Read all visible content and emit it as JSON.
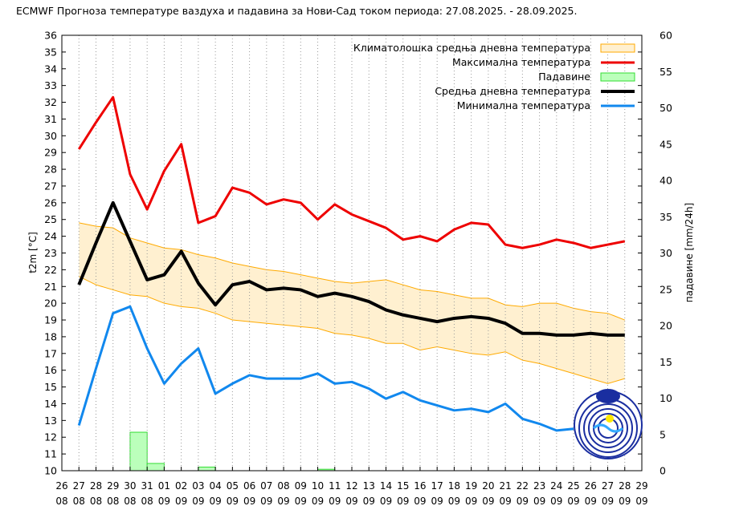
{
  "chart_data": {
    "type": "line",
    "title": "ECMWF Прогноза температуре ваздуха и падавина за Нови-Сад током периода: 27.08.2025. - 28.09.2025.",
    "ylabel": "t2m [°C]",
    "y2label": "падавине [mm/24h]",
    "ylim": [
      10,
      36
    ],
    "y2lim": [
      0,
      60
    ],
    "grid": "vertical-dotted",
    "legend_position": "top-right",
    "x_ticks": [
      [
        "26",
        "08"
      ],
      [
        "27",
        "08"
      ],
      [
        "28",
        "08"
      ],
      [
        "29",
        "08"
      ],
      [
        "30",
        "08"
      ],
      [
        "31",
        "08"
      ],
      [
        "01",
        "09"
      ],
      [
        "02",
        "09"
      ],
      [
        "03",
        "09"
      ],
      [
        "04",
        "09"
      ],
      [
        "05",
        "09"
      ],
      [
        "06",
        "09"
      ],
      [
        "07",
        "09"
      ],
      [
        "08",
        "09"
      ],
      [
        "09",
        "09"
      ],
      [
        "10",
        "09"
      ],
      [
        "11",
        "09"
      ],
      [
        "12",
        "09"
      ],
      [
        "13",
        "09"
      ],
      [
        "14",
        "09"
      ],
      [
        "15",
        "09"
      ],
      [
        "16",
        "09"
      ],
      [
        "17",
        "09"
      ],
      [
        "18",
        "09"
      ],
      [
        "19",
        "09"
      ],
      [
        "20",
        "09"
      ],
      [
        "21",
        "09"
      ],
      [
        "22",
        "09"
      ],
      [
        "23",
        "09"
      ],
      [
        "24",
        "09"
      ],
      [
        "25",
        "09"
      ],
      [
        "26",
        "09"
      ],
      [
        "27",
        "09"
      ],
      [
        "28",
        "09"
      ],
      [
        "29",
        "09"
      ]
    ],
    "x_day_index": [
      1,
      2,
      3,
      4,
      5,
      6,
      7,
      8,
      9,
      10,
      11,
      12,
      13,
      14,
      15,
      16,
      17,
      18,
      19,
      20,
      21,
      22,
      23,
      24,
      25,
      26,
      27,
      28,
      29,
      30,
      31,
      32,
      33
    ],
    "y_ticks": [
      10,
      11,
      12,
      13,
      14,
      15,
      16,
      17,
      18,
      19,
      20,
      21,
      22,
      23,
      24,
      25,
      26,
      27,
      28,
      29,
      30,
      31,
      32,
      33,
      34,
      35,
      36
    ],
    "y2_ticks": [
      0,
      5,
      10,
      15,
      20,
      25,
      30,
      35,
      40,
      45,
      50,
      55,
      60
    ],
    "series": [
      {
        "name": "Максимална температура",
        "color": "#ee0000",
        "values": [
          29.2,
          30.8,
          32.3,
          27.7,
          25.6,
          27.9,
          29.5,
          24.8,
          25.2,
          26.9,
          26.6,
          25.9,
          26.2,
          26.0,
          25.0,
          25.9,
          25.3,
          24.9,
          24.5,
          23.8,
          24.0,
          23.7,
          24.4,
          24.8,
          24.7,
          23.5,
          23.3,
          23.5,
          23.8,
          23.6,
          23.3,
          23.5,
          23.7
        ]
      },
      {
        "name": "Средња дневна температура",
        "color": "#000000",
        "values": [
          21.1,
          23.6,
          26.0,
          23.7,
          21.4,
          21.7,
          23.1,
          21.2,
          19.9,
          21.1,
          21.3,
          20.8,
          20.9,
          20.8,
          20.4,
          20.6,
          20.4,
          20.1,
          19.6,
          19.3,
          19.1,
          18.9,
          19.1,
          19.2,
          19.1,
          18.8,
          18.2,
          18.2,
          18.1,
          18.1,
          18.2,
          18.1,
          18.1
        ]
      },
      {
        "name": "Минимална температура",
        "color": "#1188ee",
        "values": [
          12.7,
          16.1,
          19.4,
          19.8,
          17.3,
          15.2,
          16.4,
          17.3,
          14.6,
          15.2,
          15.7,
          15.5,
          15.5,
          15.5,
          15.8,
          15.2,
          15.3,
          14.9,
          14.3,
          14.7,
          14.2,
          13.9,
          13.6,
          13.7,
          13.5,
          14.0,
          13.1,
          12.8,
          12.4,
          12.5,
          null,
          null,
          null
        ]
      }
    ],
    "climatology_band": {
      "name": "Климатолошка средња дневна температура",
      "fill": "#fff0d0",
      "edge": "#ffaa00",
      "upper": [
        24.8,
        24.6,
        24.5,
        23.9,
        23.6,
        23.3,
        23.2,
        22.9,
        22.7,
        22.4,
        22.2,
        22.0,
        21.9,
        21.7,
        21.5,
        21.3,
        21.2,
        21.3,
        21.4,
        21.1,
        20.8,
        20.7,
        20.5,
        20.3,
        20.3,
        19.9,
        19.8,
        20.0,
        20.0,
        19.7,
        19.5,
        19.4,
        19.0
      ],
      "lower": [
        21.6,
        21.1,
        20.8,
        20.5,
        20.4,
        20.0,
        19.8,
        19.7,
        19.4,
        19.0,
        18.9,
        18.8,
        18.7,
        18.6,
        18.5,
        18.2,
        18.1,
        17.9,
        17.6,
        17.6,
        17.2,
        17.4,
        17.2,
        17.0,
        16.9,
        17.1,
        16.6,
        16.4,
        16.1,
        15.8,
        15.5,
        15.2,
        15.5
      ]
    },
    "precipitation": {
      "name": "Падавине",
      "fill": "#bbffbb",
      "edge": "#33dd33",
      "values": [
        0,
        0,
        0,
        5.3,
        1.0,
        0,
        0,
        0.5,
        0,
        0,
        0,
        0,
        0,
        0,
        0.2,
        0,
        0,
        0,
        0,
        0,
        0,
        0,
        0,
        0,
        0,
        0,
        0,
        0,
        0,
        0,
        0,
        0,
        0
      ]
    }
  }
}
